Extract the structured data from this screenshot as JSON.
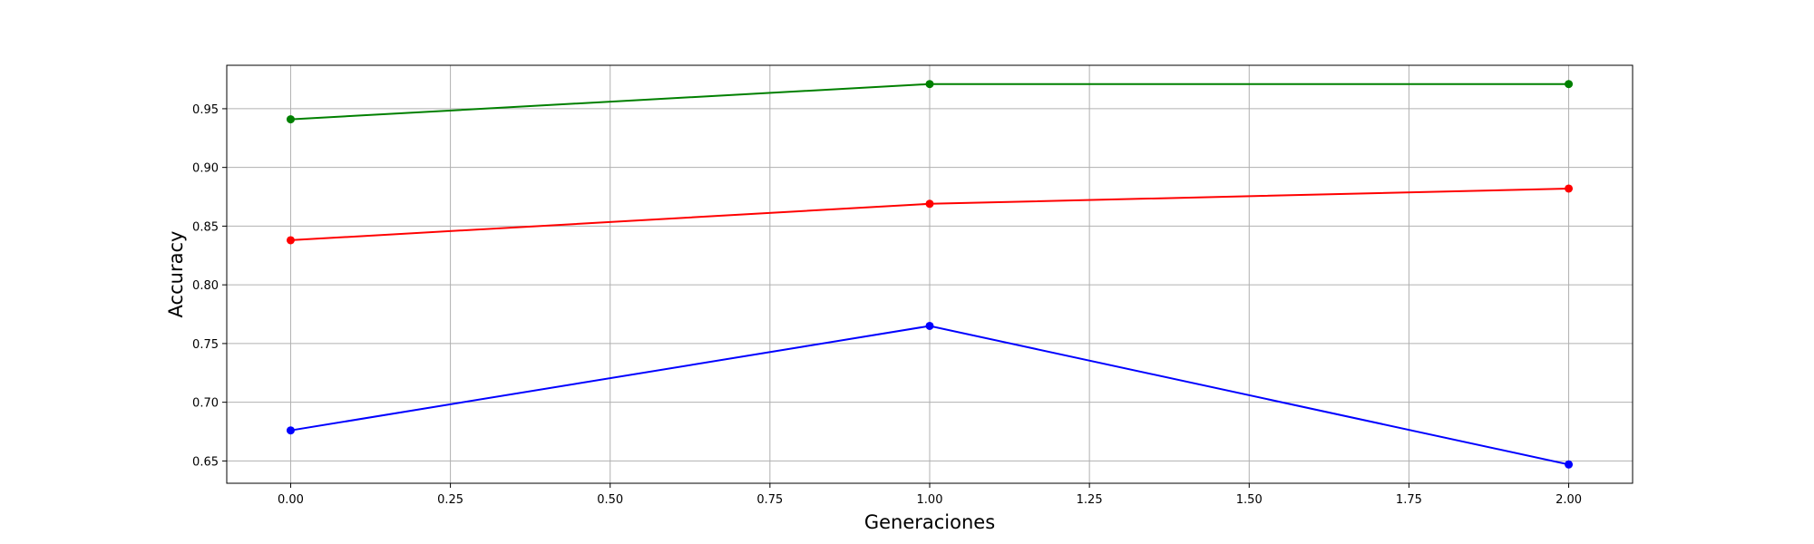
{
  "chart_data": {
    "type": "line",
    "title": "",
    "xlabel": "Generaciones",
    "ylabel": "Accuracy",
    "xlim": [
      -0.1,
      2.1
    ],
    "ylim": [
      0.631,
      0.987
    ],
    "x_ticks": [
      0.0,
      0.25,
      0.5,
      0.75,
      1.0,
      1.25,
      1.5,
      1.75,
      2.0
    ],
    "x_tick_labels": [
      "0.00",
      "0.25",
      "0.50",
      "0.75",
      "1.00",
      "1.25",
      "1.50",
      "1.75",
      "2.00"
    ],
    "y_ticks": [
      0.65,
      0.7,
      0.75,
      0.8,
      0.85,
      0.9,
      0.95
    ],
    "y_tick_labels": [
      "0.65",
      "0.70",
      "0.75",
      "0.80",
      "0.85",
      "0.90",
      "0.95"
    ],
    "grid": true,
    "legend": "none",
    "x": [
      0,
      1,
      2
    ],
    "series": [
      {
        "color": "#008000",
        "values": [
          0.941,
          0.971,
          0.971
        ]
      },
      {
        "color": "#ff0000",
        "values": [
          0.838,
          0.869,
          0.882
        ]
      },
      {
        "color": "#0000ff",
        "values": [
          0.676,
          0.765,
          0.647
        ]
      }
    ]
  }
}
